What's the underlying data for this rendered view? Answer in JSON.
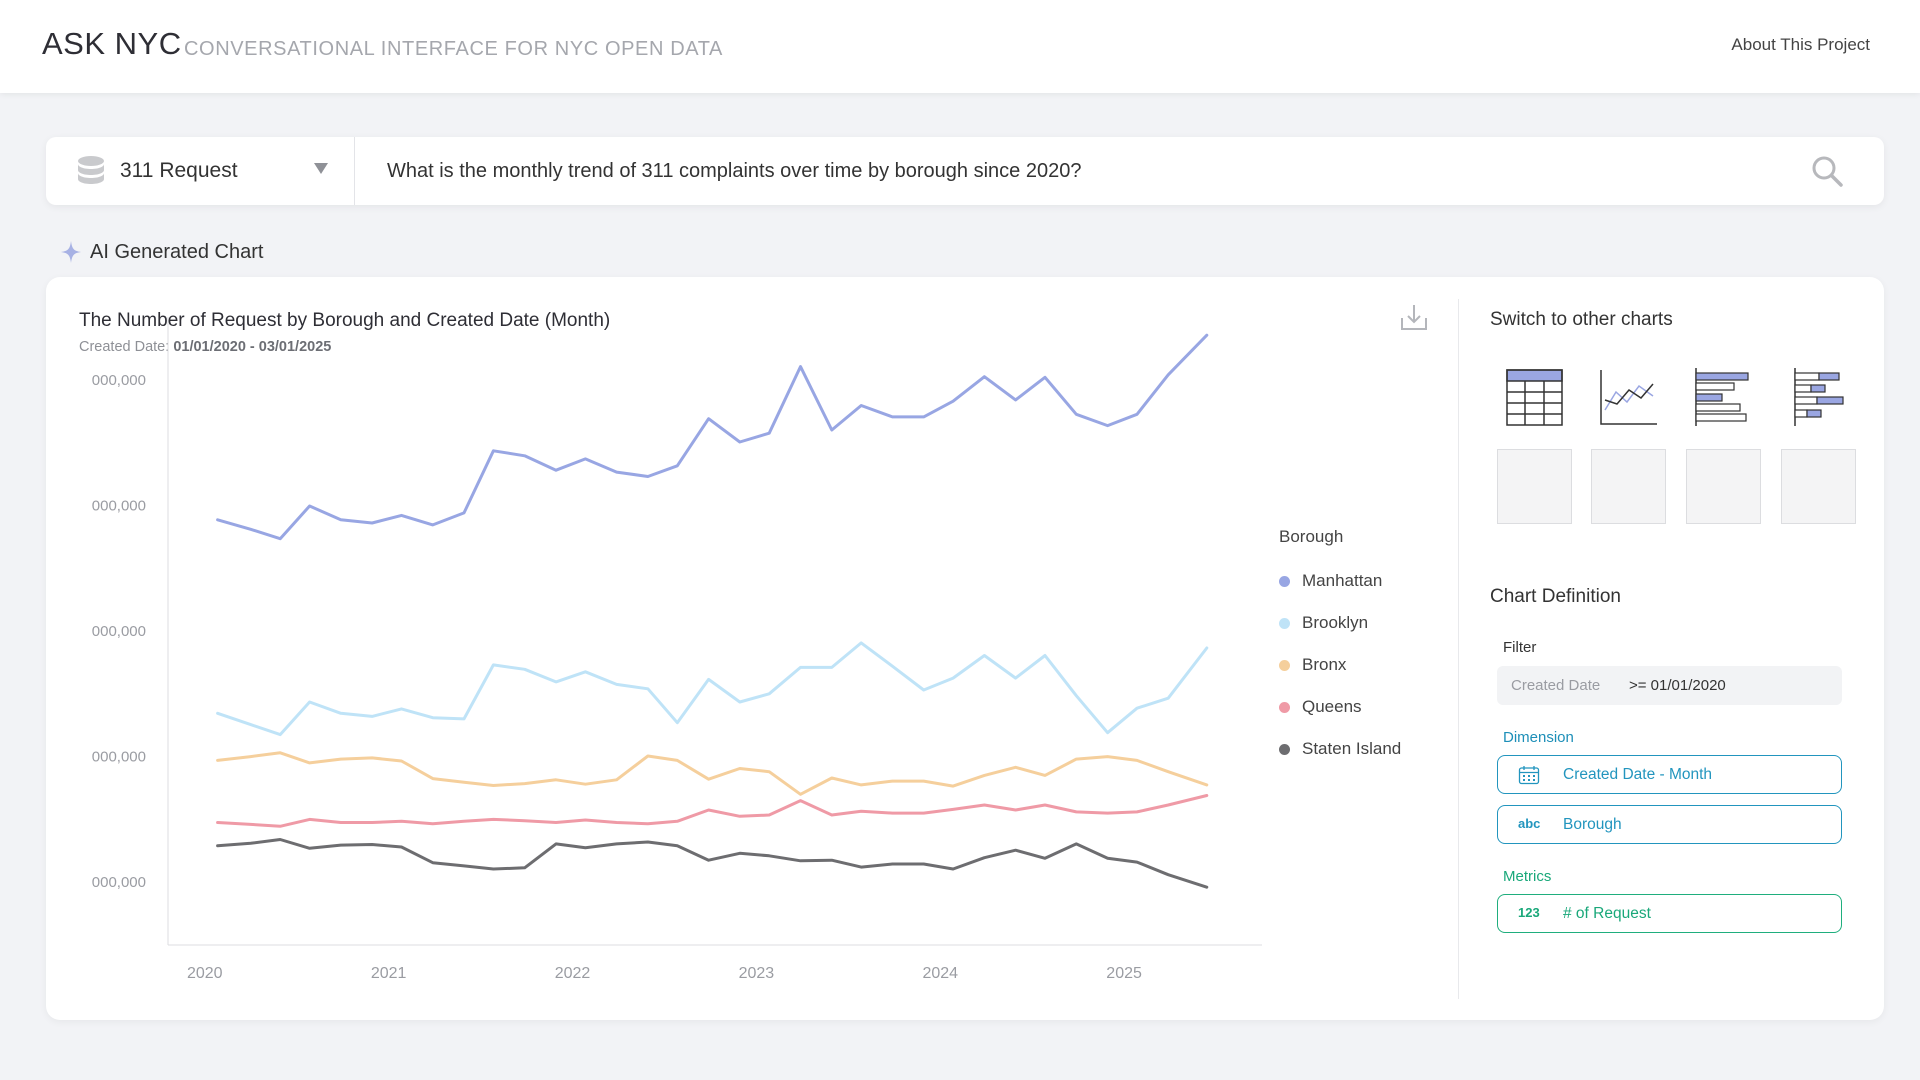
{
  "header": {
    "logo": "ASK NYC",
    "tagline": "CONVERSATIONAL INTERFACE FOR NYC OPEN DATA",
    "about_link": "About This Project"
  },
  "search": {
    "dataset": "311 Request",
    "dataset_icon": "database-icon",
    "query": "What is the monthly trend of 311 complaints over time by borough since 2020?"
  },
  "ai_section": {
    "label": "AI Generated Chart",
    "icon": "sparkle-icon"
  },
  "chart_card": {
    "title": "The Number of Request by Borough and Created Date (Month)",
    "subtitle_label": "Created Date:",
    "subtitle_range": "01/01/2020 - 03/01/2025"
  },
  "chart_data": {
    "type": "line",
    "title": "The Number of Request by Borough and Created Date (Month)",
    "xlabel": "",
    "ylabel": "",
    "x_ticks": [
      "2020",
      "2021",
      "2022",
      "2023",
      "2024",
      "2025"
    ],
    "x_tick_positions": [
      2020,
      2021,
      2022,
      2023,
      2024,
      2025
    ],
    "xlim": [
      2019.8,
      2025.75
    ],
    "y_ticks": [
      "000,000",
      "000,000",
      "000,000",
      "000,000",
      "000,000"
    ],
    "y_tick_levels": [
      0.9,
      0.7,
      0.5,
      0.3,
      0.1
    ],
    "ylim": [
      0,
      1
    ],
    "legend_title": "Borough",
    "legend_position": "right",
    "grid": false,
    "x": [
      2020.07,
      2020.25,
      2020.41,
      2020.57,
      2020.74,
      2020.91,
      2021.07,
      2021.24,
      2021.41,
      2021.57,
      2021.74,
      2021.91,
      2022.07,
      2022.24,
      2022.41,
      2022.57,
      2022.74,
      2022.91,
      2023.07,
      2023.24,
      2023.41,
      2023.57,
      2023.74,
      2023.91,
      2024.07,
      2024.24,
      2024.41,
      2024.57,
      2024.74,
      2024.91,
      2025.07,
      2025.24,
      2025.45
    ],
    "series": [
      {
        "name": "Manhattan",
        "color": "#98a6e3",
        "values": [
          0.677,
          0.662,
          0.647,
          0.699,
          0.677,
          0.672,
          0.684,
          0.669,
          0.688,
          0.787,
          0.779,
          0.756,
          0.774,
          0.753,
          0.746,
          0.763,
          0.838,
          0.801,
          0.815,
          0.921,
          0.82,
          0.859,
          0.841,
          0.841,
          0.866,
          0.905,
          0.868,
          0.904,
          0.845,
          0.827,
          0.845,
          0.908,
          0.971
        ]
      },
      {
        "name": "Brooklyn",
        "color": "#bfe3f7",
        "values": [
          0.369,
          0.351,
          0.335,
          0.387,
          0.369,
          0.364,
          0.376,
          0.362,
          0.36,
          0.446,
          0.439,
          0.419,
          0.435,
          0.415,
          0.408,
          0.354,
          0.423,
          0.387,
          0.4,
          0.442,
          0.442,
          0.481,
          0.444,
          0.406,
          0.425,
          0.461,
          0.425,
          0.461,
          0.397,
          0.338,
          0.377,
          0.393,
          0.473
        ]
      },
      {
        "name": "Bronx",
        "color": "#f5cf9c",
        "values": [
          0.294,
          0.3,
          0.306,
          0.29,
          0.296,
          0.298,
          0.293,
          0.265,
          0.259,
          0.254,
          0.257,
          0.263,
          0.256,
          0.263,
          0.301,
          0.294,
          0.264,
          0.281,
          0.276,
          0.24,
          0.266,
          0.255,
          0.261,
          0.261,
          0.253,
          0.27,
          0.283,
          0.27,
          0.296,
          0.3,
          0.294,
          0.276,
          0.255
        ]
      },
      {
        "name": "Queens",
        "color": "#ef9aa6",
        "values": [
          0.195,
          0.192,
          0.189,
          0.2,
          0.195,
          0.195,
          0.197,
          0.193,
          0.197,
          0.2,
          0.198,
          0.195,
          0.199,
          0.195,
          0.193,
          0.197,
          0.215,
          0.205,
          0.207,
          0.23,
          0.207,
          0.213,
          0.21,
          0.21,
          0.216,
          0.223,
          0.215,
          0.223,
          0.212,
          0.21,
          0.212,
          0.223,
          0.238
        ]
      },
      {
        "name": "Staten Island",
        "color": "#6d6d70",
        "values": [
          0.158,
          0.162,
          0.168,
          0.154,
          0.159,
          0.16,
          0.156,
          0.131,
          0.126,
          0.121,
          0.123,
          0.161,
          0.155,
          0.161,
          0.164,
          0.158,
          0.135,
          0.146,
          0.142,
          0.134,
          0.135,
          0.124,
          0.129,
          0.129,
          0.121,
          0.139,
          0.151,
          0.138,
          0.161,
          0.138,
          0.132,
          0.112,
          0.092
        ]
      }
    ]
  },
  "sidebar": {
    "switch_title": "Switch to other charts",
    "chart_types": [
      {
        "icon": "table-chart-icon"
      },
      {
        "icon": "line-chart-icon"
      },
      {
        "icon": "bar-chart-icon"
      },
      {
        "icon": "grouped-bar-chart-icon"
      }
    ],
    "definition_title": "Chart Definition",
    "filter_label": "Filter",
    "filter": {
      "field": "Created Date",
      "value": ">= 01/01/2020"
    },
    "dimension_label": "Dimension",
    "dimensions": [
      {
        "icon": "calendar-icon",
        "label": "Created Date - Month"
      },
      {
        "icon_text": "abc",
        "label": "Borough"
      }
    ],
    "metrics_label": "Metrics",
    "metrics": [
      {
        "icon_text": "123",
        "label": "# of Request"
      }
    ]
  },
  "colors": {
    "accent_dimension": "#2295be",
    "accent_metric": "#1aa87a",
    "thumb_fill": "#9aa6e2"
  }
}
